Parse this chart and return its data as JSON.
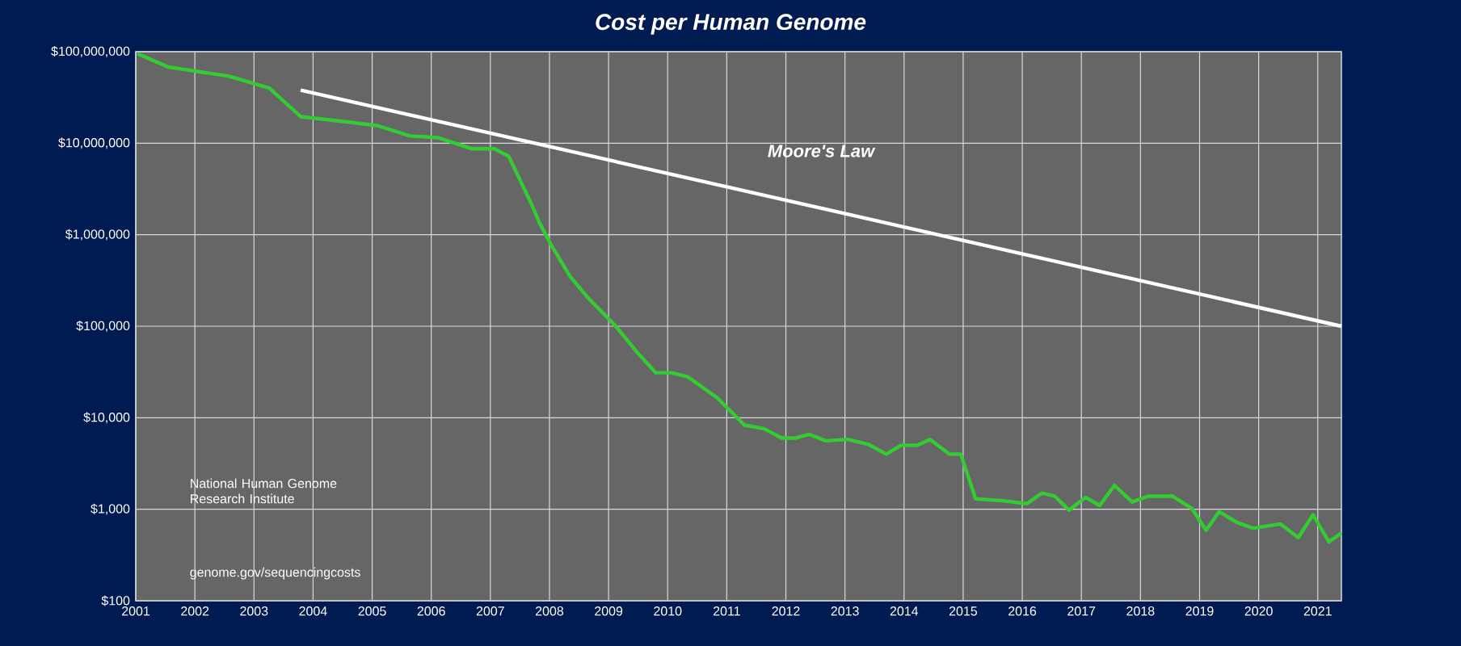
{
  "chart_data": {
    "type": "line",
    "title": "Cost per Human Genome",
    "log": "y",
    "grid": true,
    "legend": false,
    "xlim": [
      2001,
      2021.4
    ],
    "xticks": [
      2001,
      2002,
      2003,
      2004,
      2005,
      2006,
      2007,
      2008,
      2009,
      2010,
      2011,
      2012,
      2013,
      2014,
      2015,
      2016,
      2017,
      2018,
      2019,
      2020,
      2021
    ],
    "ylim": [
      100,
      100000000
    ],
    "yticks": [
      {
        "value": 100,
        "label": "$100"
      },
      {
        "value": 1000,
        "label": "$1,000"
      },
      {
        "value": 10000,
        "label": "$10,000"
      },
      {
        "value": 100000,
        "label": "$100,000"
      },
      {
        "value": 1000000,
        "label": "$1,000,000"
      },
      {
        "value": 10000000,
        "label": "$10,000,000"
      },
      {
        "value": 100000000,
        "label": "$100,000,000"
      }
    ],
    "series": [
      {
        "color": "#33cc33",
        "x": [
          2001.03,
          2001.55,
          2002.58,
          2003.26,
          2003.79,
          2004.61,
          2005.1,
          2005.64,
          2006.11,
          2006.68,
          2007.07,
          2007.31,
          2007.69,
          2007.83,
          2008.02,
          2008.35,
          2008.65,
          2009.11,
          2009.47,
          2009.8,
          2010.07,
          2010.34,
          2010.84,
          2011.3,
          2011.63,
          2011.93,
          2012.17,
          2012.39,
          2012.67,
          2013.05,
          2013.4,
          2013.7,
          2013.95,
          2014.22,
          2014.44,
          2014.77,
          2014.96,
          2015.21,
          2015.67,
          2016.08,
          2016.33,
          2016.55,
          2016.79,
          2017.07,
          2017.31,
          2017.56,
          2017.86,
          2018.13,
          2018.54,
          2018.87,
          2019.11,
          2019.33,
          2019.63,
          2019.91,
          2020.37,
          2020.67,
          2020.92,
          2021.19,
          2021.4
        ],
        "values": [
          95000000,
          68000000,
          54000000,
          40000000,
          19500000,
          17000000,
          15500000,
          12000000,
          11500000,
          8700000,
          8700000,
          7200000,
          2200000,
          1350000,
          790000,
          350000,
          205000,
          102000,
          53000,
          31000,
          31000,
          28000,
          16500,
          8300,
          7600,
          6000,
          6000,
          6600,
          5600,
          5800,
          5100,
          4000,
          5000,
          5000,
          5800,
          4000,
          4000,
          1300,
          1240,
          1150,
          1500,
          1390,
          980,
          1350,
          1100,
          1820,
          1200,
          1390,
          1390,
          1020,
          590,
          940,
          720,
          620,
          690,
          490,
          870,
          440,
          550
        ]
      },
      {
        "name": "Moore's Law",
        "color": "#ffffff",
        "x": [
          2003.79,
          2021.4
        ],
        "values": [
          38000000,
          100000
        ]
      }
    ],
    "annotations": [
      "National Human Genome Research Institute",
      "genome.gov/sequencingcosts"
    ]
  }
}
